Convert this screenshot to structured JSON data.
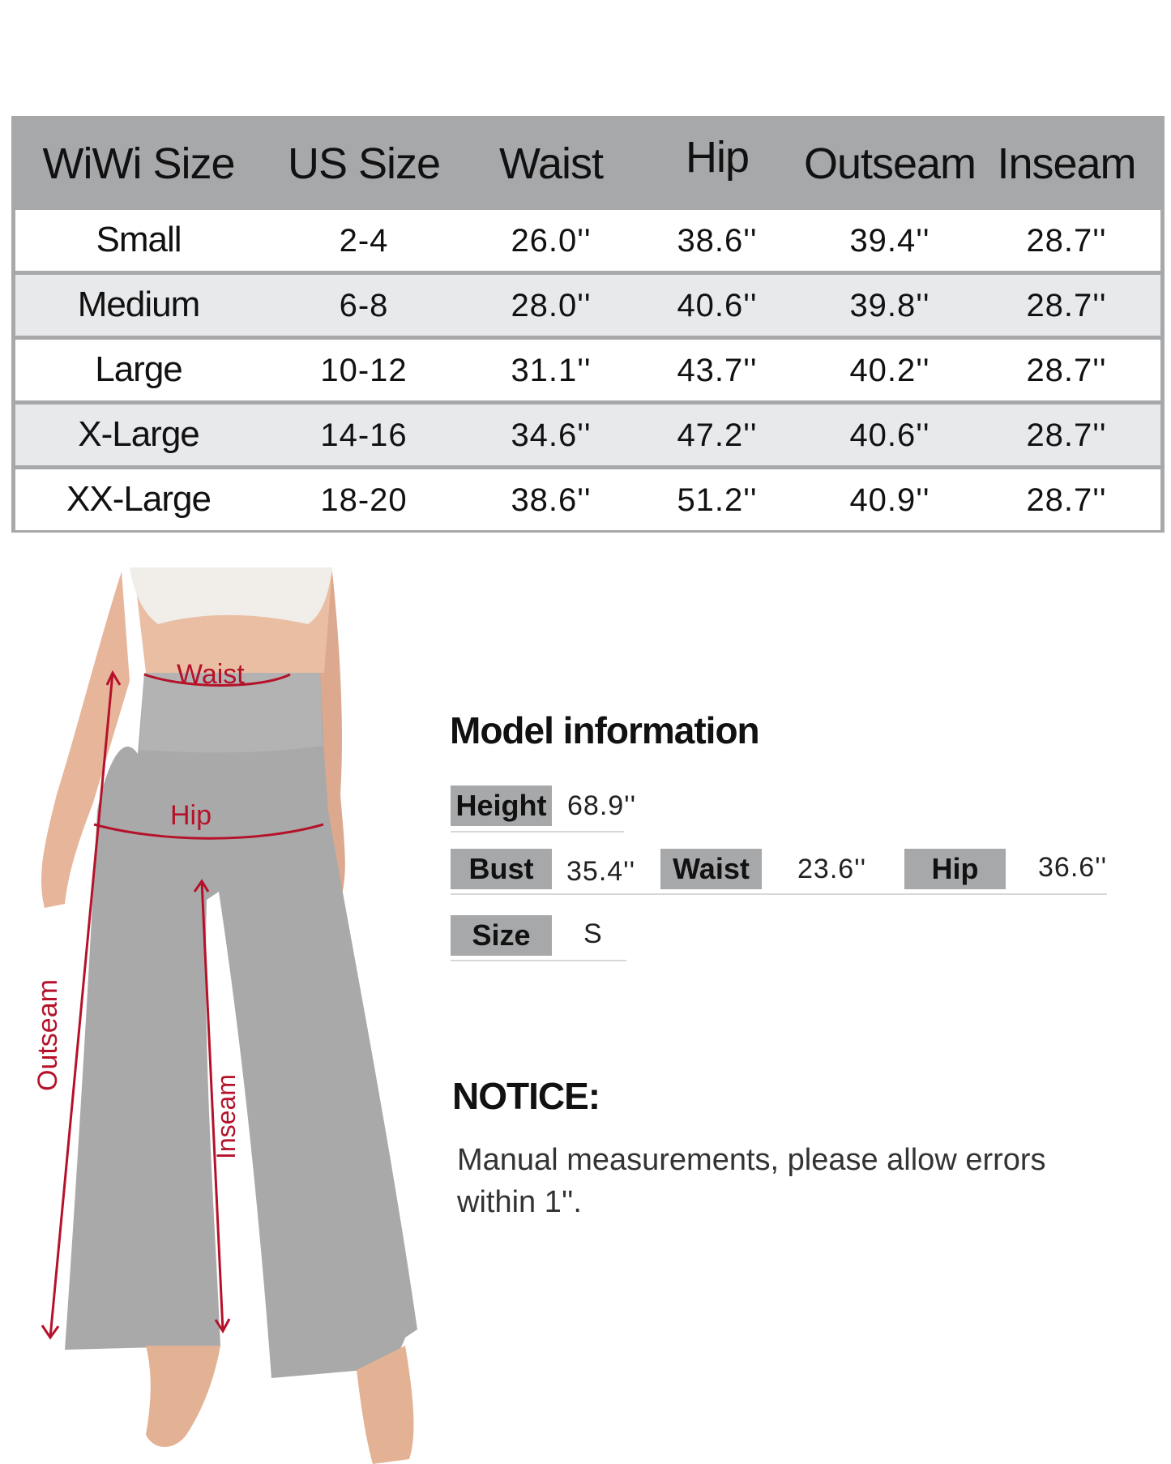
{
  "size_table": {
    "headers": [
      "WiWi Size",
      "US Size",
      "Waist",
      "Hip",
      "Outseam",
      "Inseam"
    ],
    "rows": [
      [
        "Small",
        "2-4",
        "26.0''",
        "38.6''",
        "39.4''",
        "28.7''"
      ],
      [
        "Medium",
        "6-8",
        "28.0''",
        "40.6''",
        "39.8''",
        "28.7''"
      ],
      [
        "Large",
        "10-12",
        "31.1''",
        "43.7''",
        "40.2''",
        "28.7''"
      ],
      [
        "X-Large",
        "14-16",
        "34.6''",
        "47.2''",
        "40.6''",
        "28.7''"
      ],
      [
        "XX-Large",
        "18-20",
        "38.6''",
        "51.2''",
        "40.9''",
        "28.7''"
      ]
    ]
  },
  "photo_labels": {
    "waist": "Waist",
    "hip": "Hip",
    "outseam": "Outseam",
    "inseam": "Inseam"
  },
  "model_info": {
    "title": "Model information",
    "height_label": "Height",
    "height_value": "68.9''",
    "bust_label": "Bust",
    "bust_value": "35.4''",
    "waist_label": "Waist",
    "waist_value": "23.6''",
    "hip_label": "Hip",
    "hip_value": "36.6''",
    "size_label": "Size",
    "size_value": "S"
  },
  "notice": {
    "title": "NOTICE:",
    "text": "Manual measurements, please allow errors within 1''."
  },
  "colors": {
    "header_gray": "#a7a8aa",
    "row_alt": "#e8e9eb",
    "measure_red": "#b5122a",
    "pants_gray": "#a9a9a9"
  }
}
